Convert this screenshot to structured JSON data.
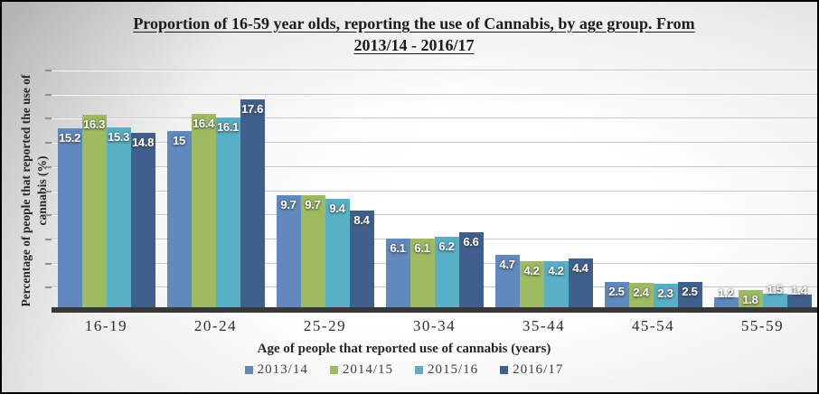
{
  "title": {
    "line1": "Proportion of 16-59 year olds, reporting the use of Cannabis, by age group. From",
    "line2": "2013/14 - 2016/17"
  },
  "y_axis": {
    "label_line1": "Percentage of people that reported the use of",
    "label_line2": "cannabis (%)"
  },
  "x_axis": {
    "label": "Age of people that reported use of cannabis (years)"
  },
  "colors": {
    "series_2013_14": "#6189BD",
    "series_2014_15": "#9EBB61",
    "series_2015_16": "#58B0C6",
    "series_2016_17": "#3F608D",
    "axis_line": "#383838",
    "gridline": "#C6C6C6",
    "bar_label_text": "#FFFFFF"
  },
  "chart_data": {
    "type": "bar",
    "title": "Proportion of 16-59 year olds, reporting the use of Cannabis, by age group. From 2013/14 - 2016/17",
    "xlabel": "Age of people that reported use of cannabis (years)",
    "ylabel": "Percentage of people that reported the use of cannabis (%)",
    "categories": [
      "16-19",
      "20-24",
      "25-29",
      "30-34",
      "35-44",
      "45-54",
      "55-59"
    ],
    "series": [
      {
        "name": "2013/14",
        "color": "#6189BD",
        "values": [
          15.2,
          15,
          9.7,
          6.1,
          4.7,
          2.5,
          1.2
        ]
      },
      {
        "name": "2014/15",
        "color": "#9EBB61",
        "values": [
          16.3,
          16.4,
          9.7,
          6.1,
          4.2,
          2.4,
          1.8
        ]
      },
      {
        "name": "2015/16",
        "color": "#58B0C6",
        "values": [
          15.3,
          16.1,
          9.4,
          6.2,
          4.2,
          2.3,
          1.5
        ]
      },
      {
        "name": "2016/17",
        "color": "#3F608D",
        "values": [
          14.8,
          17.6,
          8.4,
          6.6,
          4.4,
          2.5,
          1.4
        ]
      }
    ],
    "ylim": [
      0,
      20
    ],
    "gridline_step": 2,
    "y_tick_labels_shown": false,
    "grid": true,
    "data_labels": true,
    "legend_position": "bottom"
  }
}
